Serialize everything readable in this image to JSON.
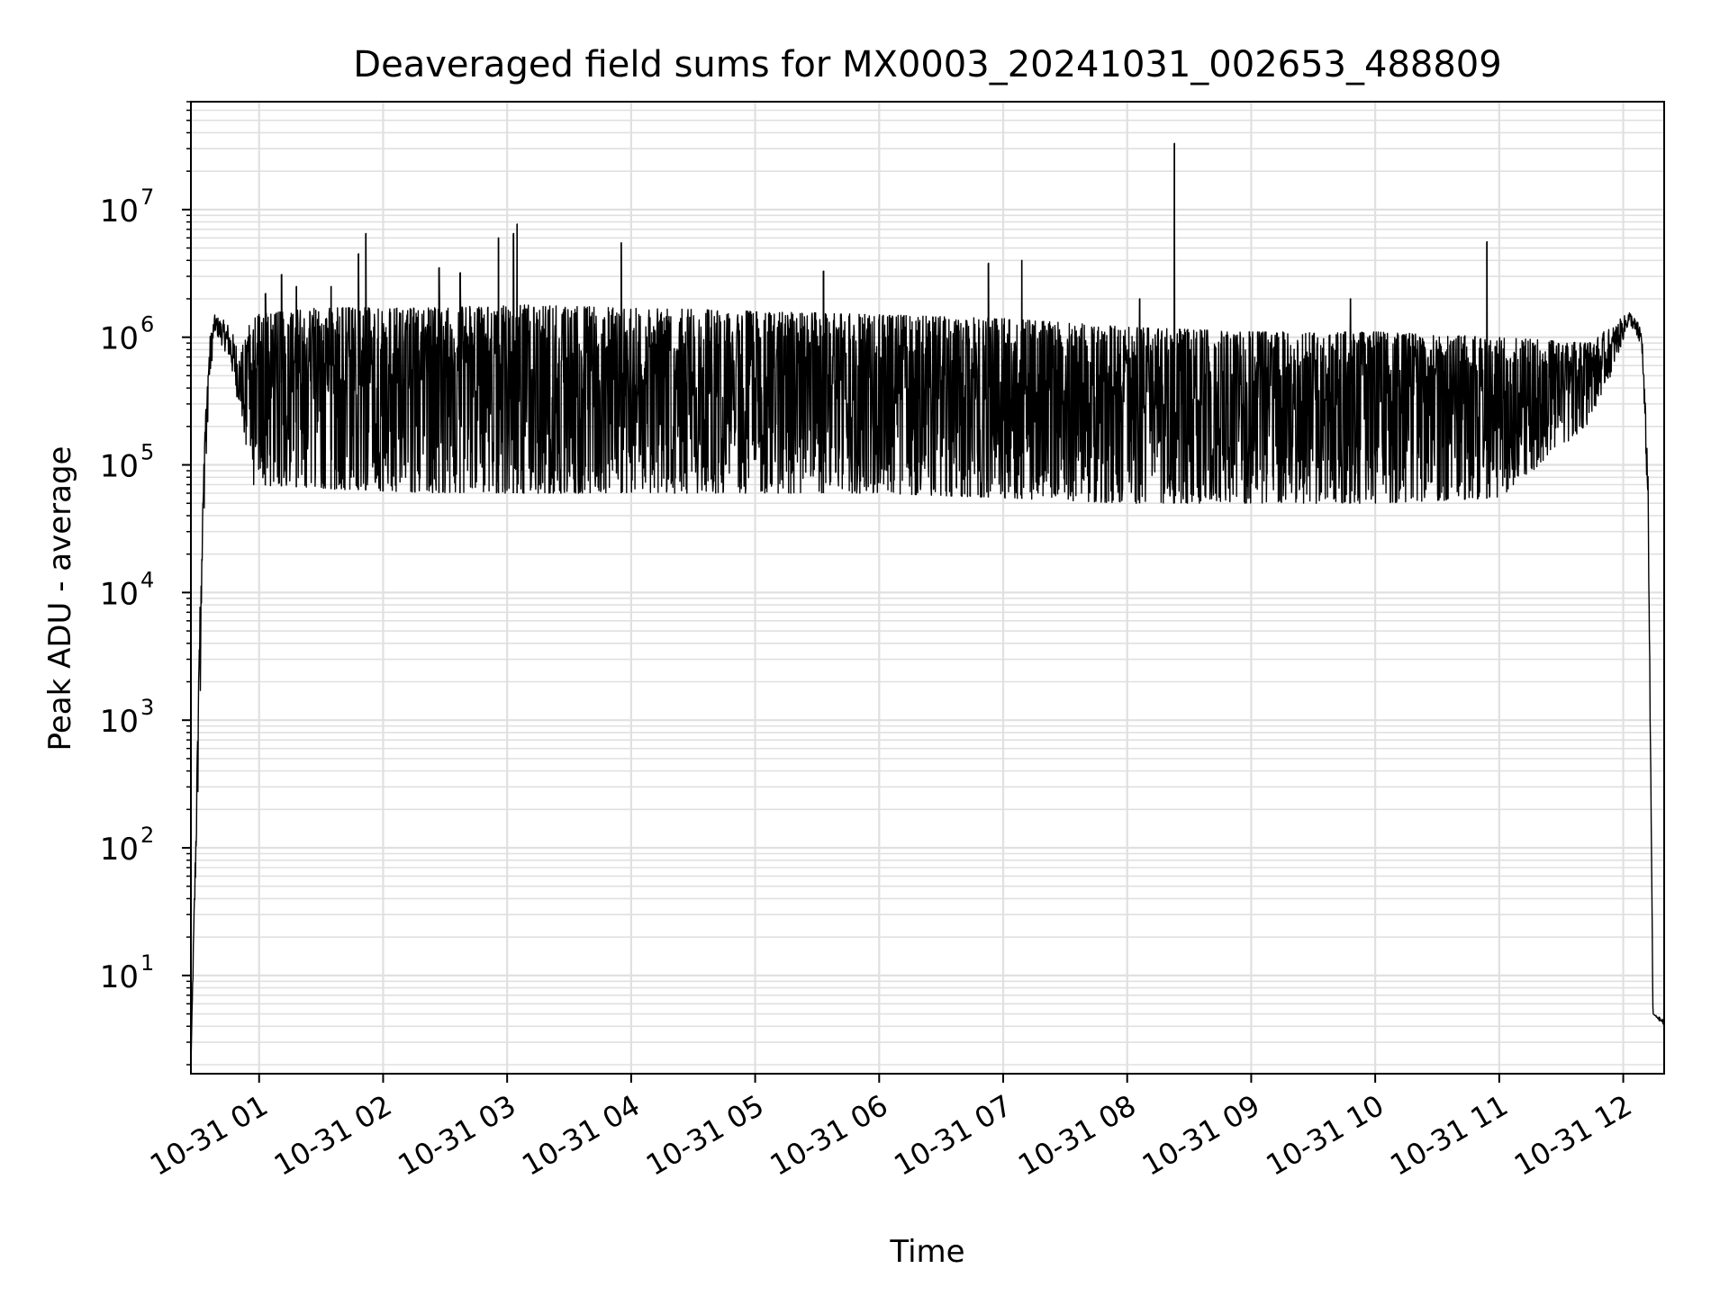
{
  "chart_data": {
    "type": "line",
    "title": "Deaveraged field sums for MX0003_20241031_002653_488809",
    "xlabel": "Time",
    "ylabel": "Peak ADU - average",
    "yscale": "log",
    "x_unit": "hours since 2024-10-31 00:00",
    "xlim": [
      0.45,
      12.33
    ],
    "ylim": [
      1.7,
      70000000
    ],
    "grid": true,
    "minor_grid": true,
    "line_color": "#000000",
    "grid_color": "#e0e0e0",
    "x_ticks": [
      {
        "value": 1,
        "label": "10-31 01"
      },
      {
        "value": 2,
        "label": "10-31 02"
      },
      {
        "value": 3,
        "label": "10-31 03"
      },
      {
        "value": 4,
        "label": "10-31 04"
      },
      {
        "value": 5,
        "label": "10-31 05"
      },
      {
        "value": 6,
        "label": "10-31 06"
      },
      {
        "value": 7,
        "label": "10-31 07"
      },
      {
        "value": 8,
        "label": "10-31 08"
      },
      {
        "value": 9,
        "label": "10-31 09"
      },
      {
        "value": 10,
        "label": "10-31 10"
      },
      {
        "value": 11,
        "label": "10-31 11"
      },
      {
        "value": 12,
        "label": "10-31 12"
      }
    ],
    "y_ticks": [
      {
        "value": 10,
        "base": "10",
        "exp": "1"
      },
      {
        "value": 100,
        "base": "10",
        "exp": "2"
      },
      {
        "value": 1000,
        "base": "10",
        "exp": "3"
      },
      {
        "value": 10000,
        "base": "10",
        "exp": "4"
      },
      {
        "value": 100000,
        "base": "10",
        "exp": "5"
      },
      {
        "value": 1000000,
        "base": "10",
        "exp": "6"
      },
      {
        "value": 10000000,
        "base": "10",
        "exp": "7"
      }
    ],
    "series": [
      {
        "name": "Peak ADU - average",
        "envelope": [
          {
            "x": 0.45,
            "low": 2,
            "high": 2
          },
          {
            "x": 0.54,
            "low": 5000,
            "high": 50000
          },
          {
            "x": 0.59,
            "low": 300000,
            "high": 900000
          },
          {
            "x": 0.64,
            "low": 1100000,
            "high": 1500000
          },
          {
            "x": 0.75,
            "low": 700000,
            "high": 1300000
          },
          {
            "x": 0.85,
            "low": 250000,
            "high": 800000
          },
          {
            "x": 0.95,
            "low": 70000,
            "high": 1500000
          },
          {
            "x": 1.5,
            "low": 65000,
            "high": 1700000
          },
          {
            "x": 2.5,
            "low": 60000,
            "high": 1700000
          },
          {
            "x": 3.0,
            "low": 60000,
            "high": 1800000
          },
          {
            "x": 4.0,
            "low": 60000,
            "high": 1700000
          },
          {
            "x": 5.0,
            "low": 60000,
            "high": 1600000
          },
          {
            "x": 6.0,
            "low": 60000,
            "high": 1500000
          },
          {
            "x": 7.0,
            "low": 55000,
            "high": 1400000
          },
          {
            "x": 8.0,
            "low": 50000,
            "high": 1200000
          },
          {
            "x": 9.0,
            "low": 50000,
            "high": 1100000
          },
          {
            "x": 10.0,
            "low": 50000,
            "high": 1100000
          },
          {
            "x": 11.0,
            "low": 55000,
            "high": 1000000
          },
          {
            "x": 11.7,
            "low": 200000,
            "high": 900000
          },
          {
            "x": 11.9,
            "low": 500000,
            "high": 1200000
          },
          {
            "x": 12.05,
            "low": 1300000,
            "high": 1600000
          },
          {
            "x": 12.15,
            "low": 800000,
            "high": 1200000
          },
          {
            "x": 12.2,
            "low": 40000,
            "high": 100000
          },
          {
            "x": 12.24,
            "low": 5,
            "high": 5
          },
          {
            "x": 12.33,
            "low": 4,
            "high": 4.5
          }
        ],
        "spikes": [
          {
            "x": 1.05,
            "y": 2200000
          },
          {
            "x": 1.18,
            "y": 3100000
          },
          {
            "x": 1.3,
            "y": 2500000
          },
          {
            "x": 1.58,
            "y": 2500000
          },
          {
            "x": 1.8,
            "y": 4500000
          },
          {
            "x": 1.86,
            "y": 6500000
          },
          {
            "x": 2.45,
            "y": 3500000
          },
          {
            "x": 2.62,
            "y": 3200000
          },
          {
            "x": 2.93,
            "y": 6000000
          },
          {
            "x": 3.05,
            "y": 6500000
          },
          {
            "x": 3.08,
            "y": 7700000
          },
          {
            "x": 3.92,
            "y": 5500000
          },
          {
            "x": 5.55,
            "y": 3300000
          },
          {
            "x": 6.88,
            "y": 3800000
          },
          {
            "x": 7.15,
            "y": 4000000
          },
          {
            "x": 8.1,
            "y": 2000000
          },
          {
            "x": 8.38,
            "y": 33000000
          },
          {
            "x": 9.8,
            "y": 2000000
          },
          {
            "x": 10.9,
            "y": 5600000
          }
        ]
      }
    ]
  }
}
